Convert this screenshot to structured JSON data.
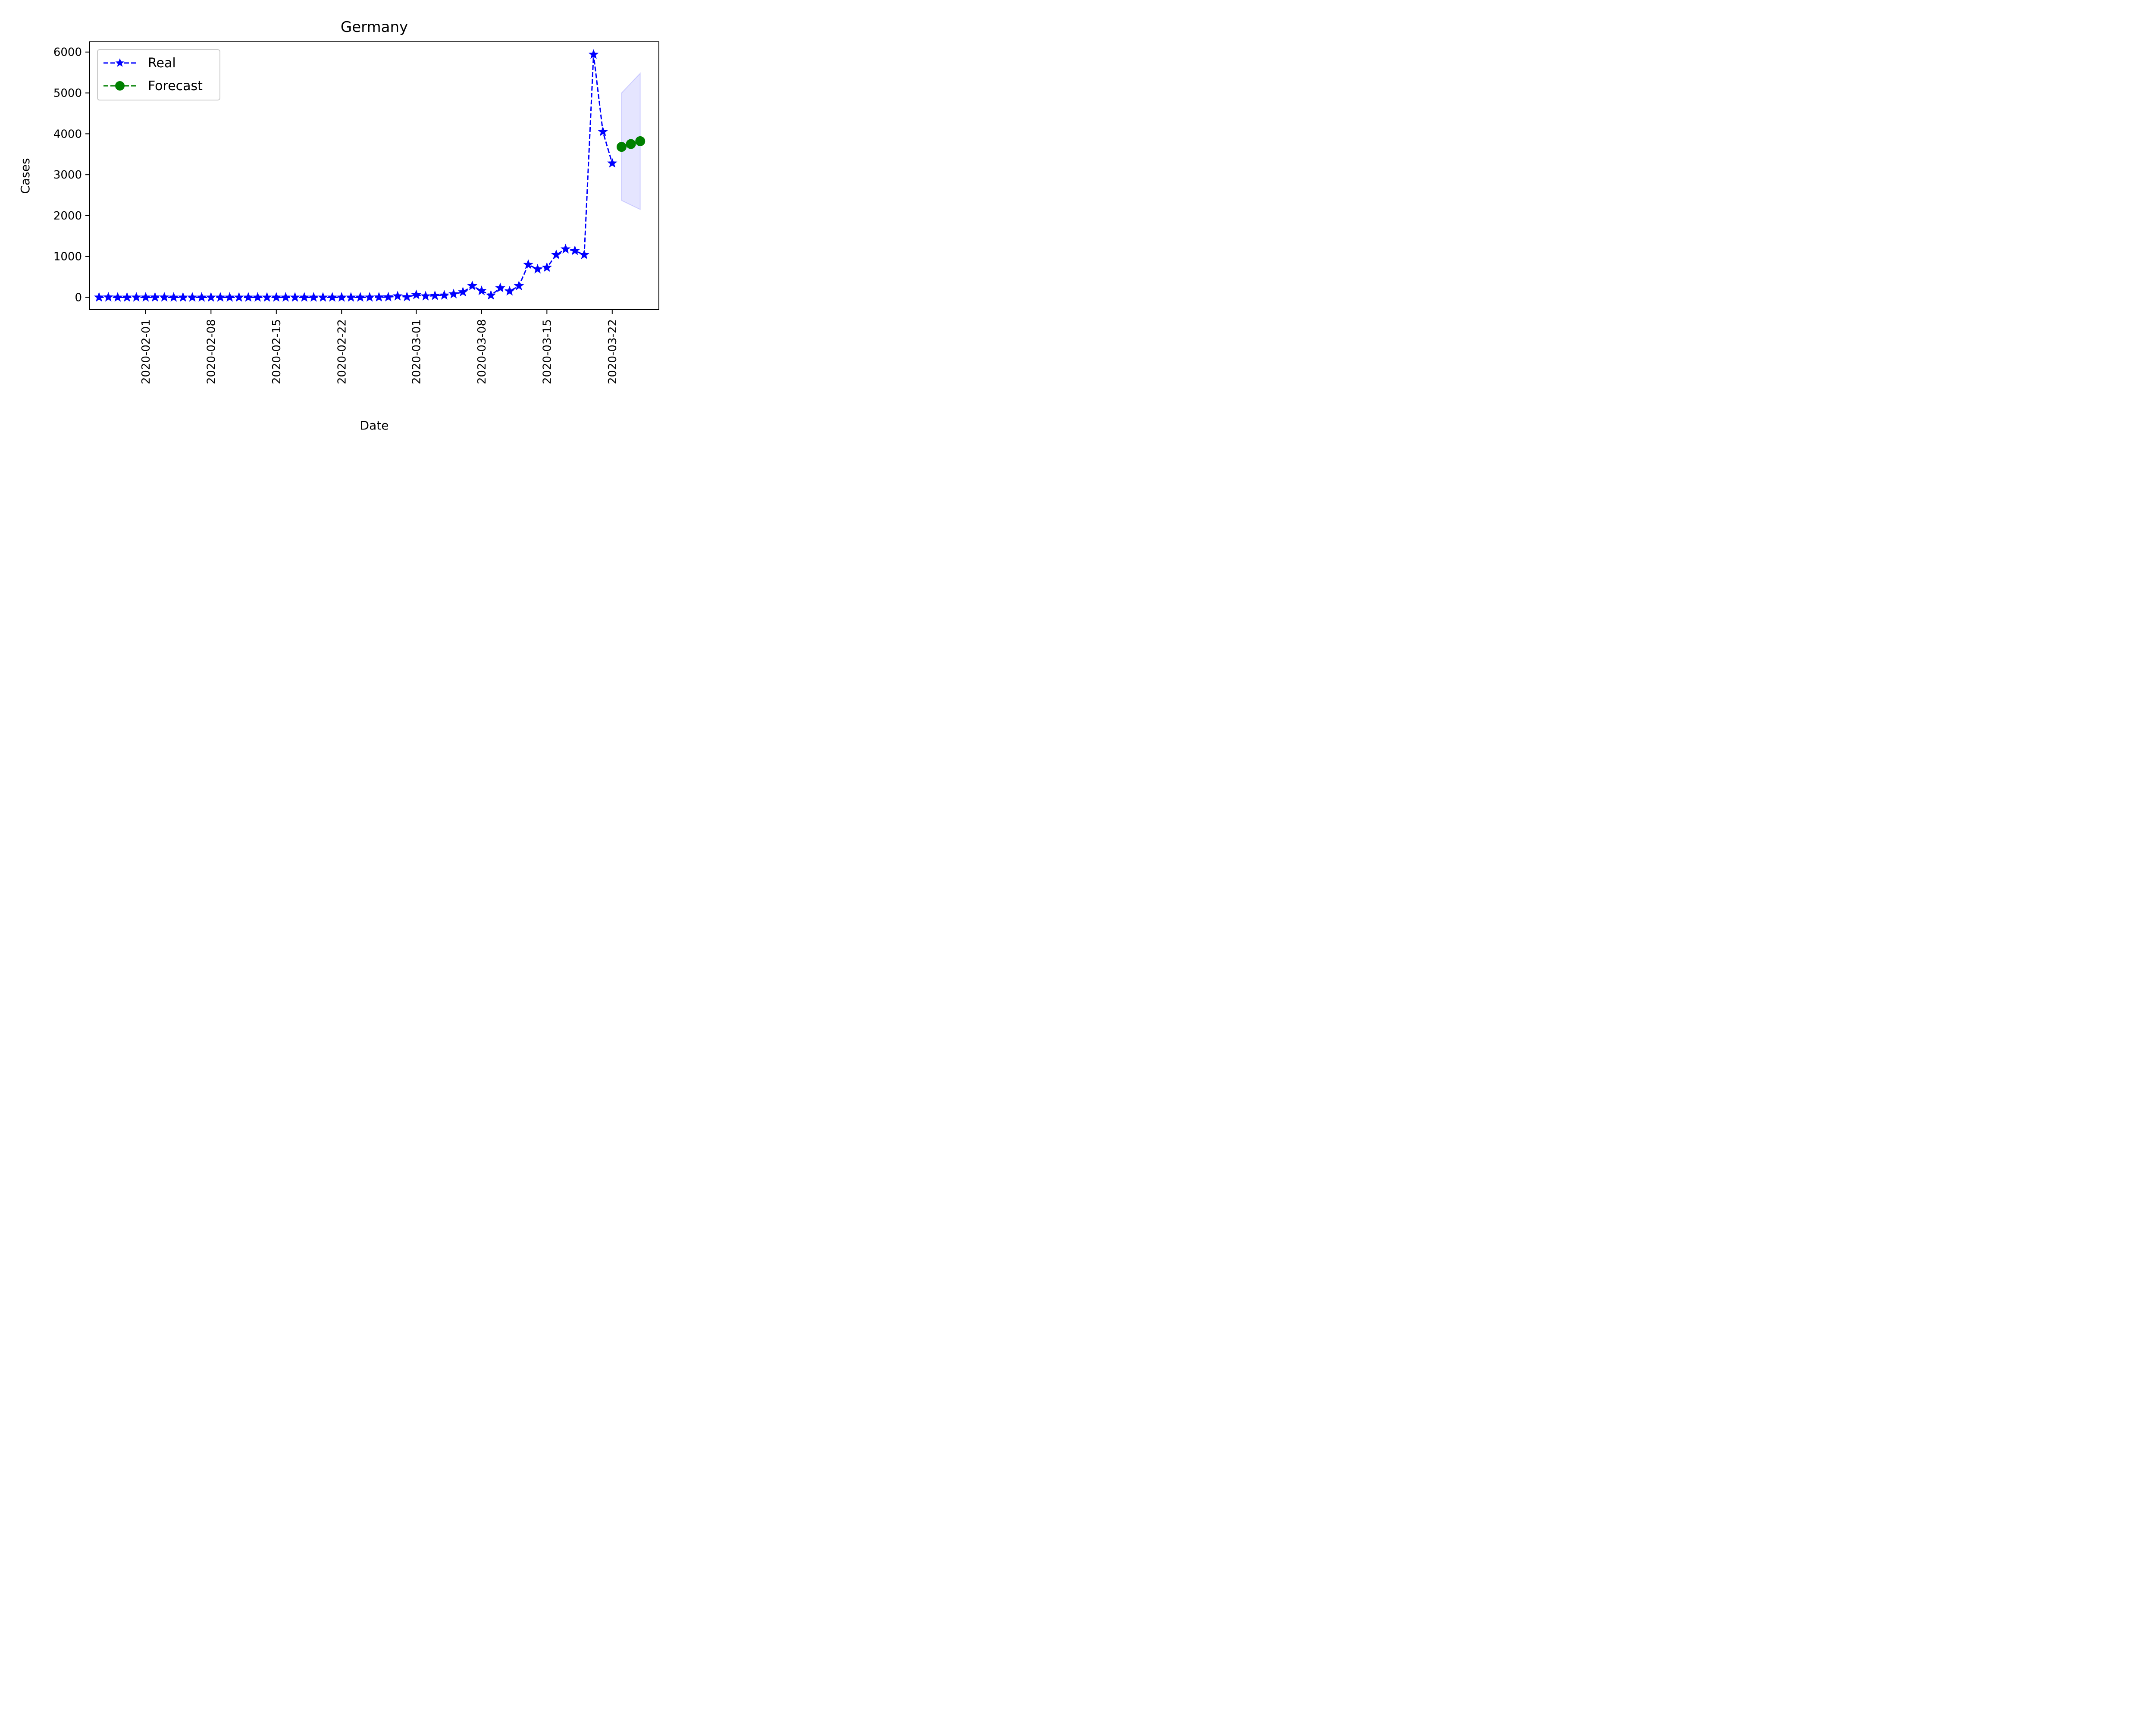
{
  "chart_data": {
    "type": "line",
    "title": "Germany",
    "xlabel": "Date",
    "ylabel": "Cases",
    "xlim": [
      "2020-01-26",
      "2020-03-27"
    ],
    "ylim": [
      -300,
      6250
    ],
    "x_ticks": [
      "2020-02-01",
      "2020-02-08",
      "2020-02-15",
      "2020-02-22",
      "2020-03-01",
      "2020-03-08",
      "2020-03-15",
      "2020-03-22"
    ],
    "y_ticks": [
      0,
      1000,
      2000,
      3000,
      4000,
      5000,
      6000
    ],
    "grid": false,
    "legend_position": "top-left",
    "series": [
      {
        "name": "Real",
        "color": "#0000ff",
        "line_style": "dashed",
        "marker": "star",
        "x": [
          "2020-01-27",
          "2020-01-28",
          "2020-01-29",
          "2020-01-30",
          "2020-01-31",
          "2020-02-01",
          "2020-02-02",
          "2020-02-03",
          "2020-02-04",
          "2020-02-05",
          "2020-02-06",
          "2020-02-07",
          "2020-02-08",
          "2020-02-09",
          "2020-02-10",
          "2020-02-11",
          "2020-02-12",
          "2020-02-13",
          "2020-02-14",
          "2020-02-15",
          "2020-02-16",
          "2020-02-17",
          "2020-02-18",
          "2020-02-19",
          "2020-02-20",
          "2020-02-21",
          "2020-02-22",
          "2020-02-23",
          "2020-02-24",
          "2020-02-25",
          "2020-02-26",
          "2020-02-27",
          "2020-02-28",
          "2020-02-29",
          "2020-03-01",
          "2020-03-02",
          "2020-03-03",
          "2020-03-04",
          "2020-03-05",
          "2020-03-06",
          "2020-03-07",
          "2020-03-08",
          "2020-03-09",
          "2020-03-10",
          "2020-03-11",
          "2020-03-12",
          "2020-03-13",
          "2020-03-14",
          "2020-03-15",
          "2020-03-16",
          "2020-03-17",
          "2020-03-18",
          "2020-03-19",
          "2020-03-20",
          "2020-03-21",
          "2020-03-22"
        ],
        "values": [
          1,
          3,
          0,
          0,
          1,
          1,
          2,
          2,
          0,
          0,
          0,
          0,
          0,
          0,
          0,
          0,
          0,
          0,
          0,
          0,
          0,
          0,
          0,
          0,
          0,
          0,
          0,
          0,
          0,
          1,
          4,
          6,
          30,
          10,
          60,
          30,
          40,
          50,
          80,
          130,
          280,
          160,
          50,
          230,
          150,
          280,
          800,
          690,
          730,
          1040,
          1180,
          1140,
          1040,
          5940,
          4050,
          3280
        ]
      },
      {
        "name": "Forecast",
        "color": "#008000",
        "line_style": "dashed",
        "marker": "circle",
        "x": [
          "2020-03-23",
          "2020-03-24",
          "2020-03-25"
        ],
        "values": [
          3680,
          3750,
          3820
        ],
        "interval_lower": [
          2370,
          2260,
          2150
        ],
        "interval_upper": [
          5000,
          5240,
          5480
        ],
        "interval_color": "#0000ff"
      }
    ]
  }
}
